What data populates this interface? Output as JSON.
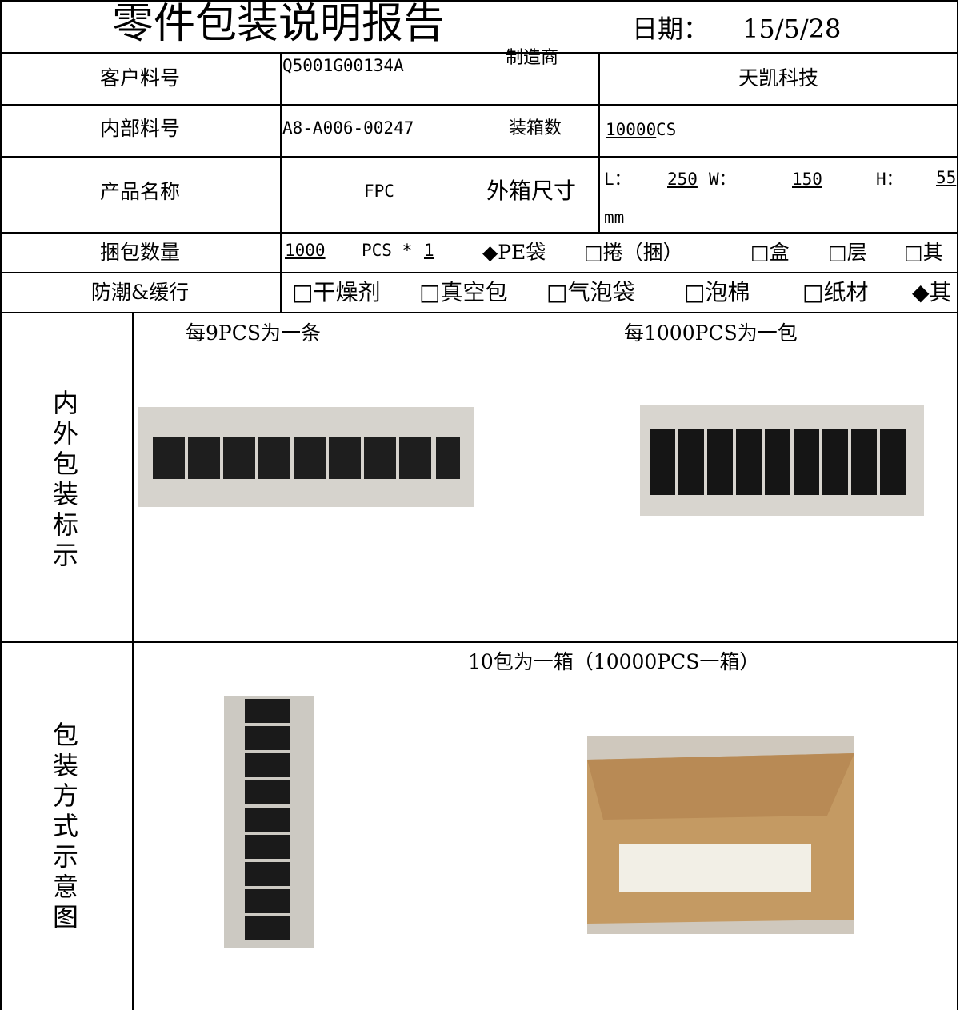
{
  "header": {
    "title": "零件包装说明报告",
    "date_label": "日期：",
    "date": "15/5/28"
  },
  "customer_part": {
    "label": "客户料号",
    "value": "Q5001G00134A",
    "maker_label": "制造商",
    "maker": "天凯科技"
  },
  "internal_part": {
    "label": "内部料号",
    "value": "A8-A006-00247",
    "box_qty_label": "装箱数",
    "box_qty": 10000,
    "box_qty_unit": "CS"
  },
  "product": {
    "label": "产品名称",
    "value": "FPC",
    "box_size_label": "外箱尺寸",
    "l_label": "L：",
    "l": 250,
    "w_label": "W：",
    "w": 150,
    "h_label": "H：",
    "h": 55,
    "unit": "mm"
  },
  "bundle": {
    "label": "捆包数量",
    "qty": 1000,
    "qty_unit": "PCS *",
    "multiplier": 1,
    "options": [
      "◆PE袋",
      "□捲（捆）",
      "□盒",
      "□层",
      "□其"
    ]
  },
  "moisture": {
    "label": "防潮&缓行",
    "options": [
      "□干燥剂",
      "□真空包",
      "□气泡袋",
      "□泡棉",
      "□纸材",
      "◆其"
    ]
  },
  "marking": {
    "label": "内外包装标示",
    "caption_strip": "每9PCS为一条",
    "caption_pack": "每1000PCS为一包"
  },
  "packing": {
    "label": "包装方式示意图",
    "caption": "10包为一箱（10000PCS一箱）"
  }
}
